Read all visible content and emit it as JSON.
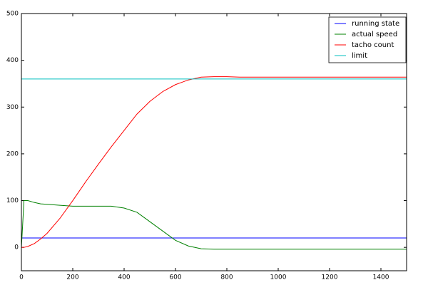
{
  "chart_data": {
    "type": "line",
    "x": [
      0,
      10,
      25,
      50,
      75,
      100,
      150,
      200,
      250,
      300,
      350,
      400,
      450,
      500,
      550,
      600,
      650,
      700,
      750,
      800,
      850,
      900,
      1000,
      1100,
      1200,
      1300,
      1400,
      1500
    ],
    "series": [
      {
        "name": "running state",
        "color": "#0000ff",
        "values": [
          20,
          20,
          20,
          20,
          20,
          20,
          20,
          20,
          20,
          20,
          20,
          20,
          20,
          20,
          20,
          20,
          20,
          20,
          20,
          20,
          20,
          20,
          20,
          20,
          20,
          20,
          20,
          20
        ]
      },
      {
        "name": "actual speed",
        "color": "#008000",
        "values": [
          0,
          100,
          100,
          96,
          93,
          92,
          90,
          88,
          88,
          88,
          88,
          84,
          75,
          55,
          35,
          15,
          3,
          -3,
          -4,
          -4,
          -4,
          -4,
          -4,
          -4,
          -4,
          -4,
          -4,
          -4
        ]
      },
      {
        "name": "tacho count",
        "color": "#ff0000",
        "values": [
          0,
          0,
          2,
          8,
          18,
          30,
          62,
          100,
          140,
          178,
          215,
          250,
          285,
          312,
          333,
          348,
          358,
          364,
          365,
          365,
          364,
          364,
          364,
          364,
          364,
          364,
          364,
          364
        ]
      },
      {
        "name": "limit",
        "color": "#00bfbf",
        "values": [
          360,
          360,
          360,
          360,
          360,
          360,
          360,
          360,
          360,
          360,
          360,
          360,
          360,
          360,
          360,
          360,
          360,
          360,
          360,
          360,
          360,
          360,
          360,
          360,
          360,
          360,
          360,
          360
        ]
      }
    ],
    "xlim": [
      0,
      1500
    ],
    "xticks": [
      0,
      200,
      400,
      600,
      800,
      1000,
      1200,
      1400
    ],
    "ylim": [
      -50,
      500
    ],
    "yticks": [
      0,
      100,
      200,
      300,
      400,
      500
    ],
    "grid": false,
    "legend": "upper right"
  }
}
